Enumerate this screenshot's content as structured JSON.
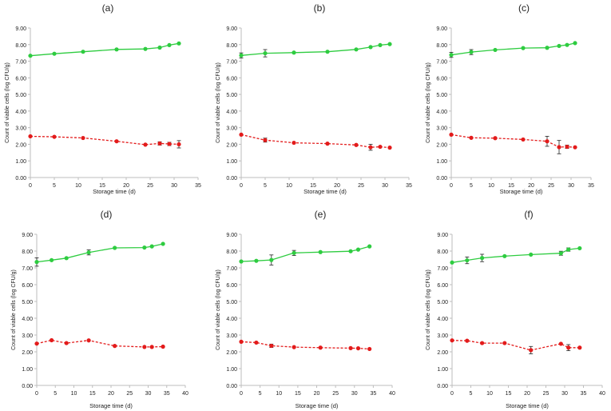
{
  "colors": {
    "green": "#2ecc40",
    "red": "#e31b1b",
    "axis": "#bdbdbd",
    "text": "#222222",
    "errorbar": "#222222"
  },
  "chart_data": [
    {
      "type": "line",
      "panel_label": "(a)",
      "xlabel": "Storage time (d)",
      "ylabel": "Count of viable cells (log CFU/g)",
      "xlim": [
        0,
        35
      ],
      "xticks": [
        0,
        5,
        10,
        15,
        20,
        25,
        30,
        35
      ],
      "ylim": [
        0,
        9
      ],
      "yticks": [
        "0.00",
        "1.00",
        "2.00",
        "3.00",
        "4.00",
        "5.00",
        "6.00",
        "7.00",
        "8.00",
        "9.00"
      ],
      "series": [
        {
          "name": "green",
          "style": "solid",
          "x": [
            0,
            5,
            11,
            18,
            24,
            27,
            29,
            31
          ],
          "values": [
            7.33,
            7.45,
            7.57,
            7.71,
            7.74,
            7.82,
            7.97,
            8.07
          ],
          "errors": [
            0.05,
            0.05,
            0.05,
            0.05,
            0.05,
            0.05,
            0.05,
            0.05
          ]
        },
        {
          "name": "red",
          "style": "dashed",
          "x": [
            0,
            5,
            11,
            18,
            24,
            27,
            29,
            31
          ],
          "values": [
            2.48,
            2.45,
            2.38,
            2.18,
            1.98,
            2.05,
            2.02,
            2.0
          ],
          "errors": [
            0.05,
            0.05,
            0.05,
            0.05,
            0.05,
            0.1,
            0.1,
            0.22
          ]
        }
      ]
    },
    {
      "type": "line",
      "panel_label": "(b)",
      "xlabel": "Storage time (d)",
      "ylabel": "Count of viable cells (log CFU/g)",
      "xlim": [
        0,
        35
      ],
      "xticks": [
        0,
        5,
        10,
        15,
        20,
        25,
        30,
        35
      ],
      "ylim": [
        0,
        9
      ],
      "yticks": [
        "0.00",
        "1.00",
        "2.00",
        "3.00",
        "4.00",
        "5.00",
        "6.00",
        "7.00",
        "8.00",
        "9.00"
      ],
      "series": [
        {
          "name": "green",
          "style": "solid",
          "x": [
            0,
            5,
            11,
            18,
            24,
            27,
            29,
            31
          ],
          "values": [
            7.35,
            7.48,
            7.52,
            7.57,
            7.71,
            7.85,
            7.97,
            8.03
          ],
          "errors": [
            0.15,
            0.22,
            0.05,
            0.05,
            0.05,
            0.05,
            0.05,
            0.05
          ]
        },
        {
          "name": "red",
          "style": "dashed",
          "x": [
            0,
            5,
            11,
            18,
            24,
            27,
            29,
            31
          ],
          "values": [
            2.58,
            2.25,
            2.09,
            2.04,
            1.96,
            1.82,
            1.85,
            1.8
          ],
          "errors": [
            0.05,
            0.12,
            0.05,
            0.05,
            0.05,
            0.18,
            0.08,
            0.08
          ]
        }
      ]
    },
    {
      "type": "line",
      "panel_label": "(c)",
      "xlabel": "Storage time (d)",
      "ylabel": "Count of viable cells (log CFU/g)",
      "xlim": [
        0,
        35
      ],
      "xticks": [
        0,
        5,
        10,
        15,
        20,
        25,
        30,
        35
      ],
      "ylim": [
        0,
        9
      ],
      "yticks": [
        "0.00",
        "1.00",
        "2.00",
        "3.00",
        "4.00",
        "5.00",
        "6.00",
        "7.00",
        "8.00",
        "9.00"
      ],
      "series": [
        {
          "name": "green",
          "style": "solid",
          "x": [
            0,
            5,
            11,
            18,
            24,
            27,
            29,
            31
          ],
          "values": [
            7.38,
            7.55,
            7.68,
            7.79,
            7.81,
            7.92,
            7.98,
            8.09
          ],
          "errors": [
            0.15,
            0.15,
            0.05,
            0.05,
            0.05,
            0.05,
            0.05,
            0.05
          ]
        },
        {
          "name": "red",
          "style": "dashed",
          "x": [
            0,
            5,
            11,
            18,
            24,
            27,
            29,
            31
          ],
          "values": [
            2.58,
            2.39,
            2.37,
            2.29,
            2.18,
            1.83,
            1.85,
            1.82
          ],
          "errors": [
            0.05,
            0.05,
            0.05,
            0.08,
            0.3,
            0.4,
            0.1,
            0.05
          ]
        }
      ]
    },
    {
      "type": "line",
      "panel_label": "(d)",
      "xlabel": "Storage time (d)",
      "ylabel": "Count of viable cells (log CFU/g)",
      "xlim": [
        0,
        40
      ],
      "xticks": [
        0,
        5,
        10,
        15,
        20,
        25,
        30,
        35,
        40
      ],
      "ylim": [
        0,
        9
      ],
      "yticks": [
        "0.00",
        "1.00",
        "2.00",
        "3.00",
        "4.00",
        "5.00",
        "6.00",
        "7.00",
        "8.00",
        "9.00"
      ],
      "series": [
        {
          "name": "green",
          "style": "solid",
          "x": [
            0,
            4,
            8,
            14,
            21,
            29,
            31,
            34
          ],
          "values": [
            7.35,
            7.46,
            7.58,
            7.92,
            8.19,
            8.21,
            8.28,
            8.43
          ],
          "errors": [
            0.25,
            0.05,
            0.05,
            0.15,
            0.05,
            0.05,
            0.05,
            0.05
          ]
        },
        {
          "name": "red",
          "style": "dashed",
          "x": [
            0,
            4,
            8,
            14,
            21,
            29,
            31,
            34
          ],
          "values": [
            2.49,
            2.69,
            2.52,
            2.68,
            2.35,
            2.29,
            2.29,
            2.31
          ],
          "errors": [
            0.05,
            0.05,
            0.05,
            0.05,
            0.05,
            0.05,
            0.05,
            0.05
          ]
        }
      ]
    },
    {
      "type": "line",
      "panel_label": "(e)",
      "xlabel": "Storage time (d)",
      "ylabel": "Count of viable cells (log CFU/g)",
      "xlim": [
        0,
        40
      ],
      "xticks": [
        0,
        5,
        10,
        15,
        20,
        25,
        30,
        35,
        40
      ],
      "ylim": [
        0,
        9
      ],
      "yticks": [
        "0.00",
        "1.00",
        "2.00",
        "3.00",
        "4.00",
        "5.00",
        "6.00",
        "7.00",
        "8.00",
        "9.00"
      ],
      "series": [
        {
          "name": "green",
          "style": "solid",
          "x": [
            0,
            4,
            8,
            14,
            21,
            29,
            31,
            34
          ],
          "values": [
            7.38,
            7.42,
            7.47,
            7.89,
            7.94,
            7.99,
            8.09,
            8.28
          ],
          "errors": [
            0.05,
            0.05,
            0.3,
            0.15,
            0.05,
            0.05,
            0.05,
            0.05
          ]
        },
        {
          "name": "red",
          "style": "dashed",
          "x": [
            0,
            4,
            8,
            14,
            21,
            29,
            31,
            34
          ],
          "values": [
            2.6,
            2.55,
            2.36,
            2.28,
            2.25,
            2.22,
            2.21,
            2.17
          ],
          "errors": [
            0.05,
            0.05,
            0.1,
            0.05,
            0.05,
            0.05,
            0.05,
            0.05
          ]
        }
      ]
    },
    {
      "type": "line",
      "panel_label": "(f)",
      "xlabel": "Storage time (d)",
      "ylabel": "Count of viable cells (log CFU/g)",
      "xlim": [
        0,
        40
      ],
      "xticks": [
        0,
        5,
        10,
        15,
        20,
        25,
        30,
        35,
        40
      ],
      "ylim": [
        0,
        9
      ],
      "yticks": [
        "0.00",
        "1.00",
        "2.00",
        "3.00",
        "4.00",
        "5.00",
        "6.00",
        "7.00",
        "8.00",
        "9.00"
      ],
      "series": [
        {
          "name": "green",
          "style": "solid",
          "x": [
            0,
            4,
            8,
            14,
            21,
            29,
            31,
            34
          ],
          "values": [
            7.32,
            7.45,
            7.59,
            7.7,
            7.79,
            7.87,
            8.09,
            8.17
          ],
          "errors": [
            0.05,
            0.2,
            0.22,
            0.05,
            0.05,
            0.12,
            0.1,
            0.05
          ]
        },
        {
          "name": "red",
          "style": "dashed",
          "x": [
            0,
            4,
            8,
            14,
            21,
            29,
            31,
            34
          ],
          "values": [
            2.68,
            2.66,
            2.52,
            2.52,
            2.1,
            2.48,
            2.25,
            2.25
          ],
          "errors": [
            0.05,
            0.05,
            0.05,
            0.05,
            0.22,
            0.05,
            0.18,
            0.05
          ]
        }
      ]
    }
  ]
}
